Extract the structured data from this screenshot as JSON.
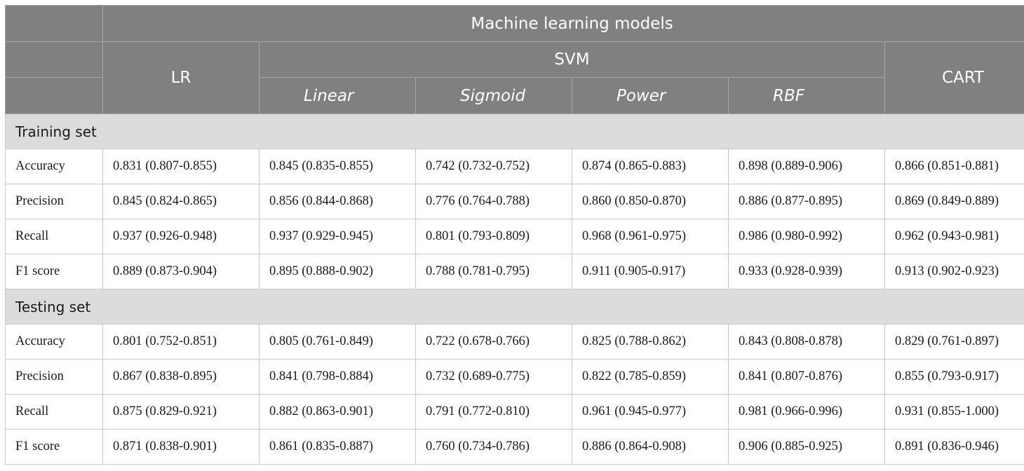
{
  "table": {
    "top_header": "Machine learning models",
    "models": {
      "lr": "LR",
      "svm": "SVM",
      "cart": "CART"
    },
    "kernels": [
      "Linear",
      "Sigmoid",
      "Power",
      "RBF"
    ],
    "sections": [
      {
        "title": "Training set",
        "rows": [
          {
            "metric": "Accuracy",
            "values": [
              "0.831 (0.807-0.855)",
              "0.845 (0.835-0.855)",
              "0.742 (0.732-0.752)",
              "0.874 (0.865-0.883)",
              "0.898 (0.889-0.906)",
              "0.866 (0.851-0.881)"
            ]
          },
          {
            "metric": "Precision",
            "values": [
              "0.845 (0.824-0.865)",
              "0.856 (0.844-0.868)",
              "0.776 (0.764-0.788)",
              "0.860 (0.850-0.870)",
              "0.886 (0.877-0.895)",
              "0.869 (0.849-0.889)"
            ]
          },
          {
            "metric": "Recall",
            "values": [
              "0.937 (0.926-0.948)",
              "0.937 (0.929-0.945)",
              "0.801 (0.793-0.809)",
              "0.968 (0.961-0.975)",
              "0.986 (0.980-0.992)",
              "0.962 (0.943-0.981)"
            ]
          },
          {
            "metric": "F1 score",
            "values": [
              "0.889 (0.873-0.904)",
              "0.895 (0.888-0.902)",
              "0.788 (0.781-0.795)",
              "0.911 (0.905-0.917)",
              "0.933 (0.928-0.939)",
              "0.913 (0.902-0.923)"
            ]
          }
        ]
      },
      {
        "title": "Testing set",
        "rows": [
          {
            "metric": "Accuracy",
            "values": [
              "0.801 (0.752-0.851)",
              "0.805 (0.761-0.849)",
              "0.722 (0.678-0.766)",
              "0.825 (0.788-0.862)",
              "0.843 (0.808-0.878)",
              "0.829 (0.761-0.897)"
            ]
          },
          {
            "metric": "Precision",
            "values": [
              "0.867 (0.838-0.895)",
              "0.841 (0.798-0.884)",
              "0.732 (0.689-0.775)",
              "0.822 (0.785-0.859)",
              "0.841 (0.807-0.876)",
              "0.855 (0.793-0.917)"
            ]
          },
          {
            "metric": "Recall",
            "values": [
              "0.875 (0.829-0.921)",
              "0.882 (0.863-0.901)",
              "0.791 (0.772-0.810)",
              "0.961 (0.945-0.977)",
              "0.981 (0.966-0.996)",
              "0.931 (0.855-1.000)"
            ]
          },
          {
            "metric": "F1 score",
            "values": [
              "0.871 (0.838-0.901)",
              "0.861 (0.835-0.887)",
              "0.760 (0.734-0.786)",
              "0.886 (0.864-0.908)",
              "0.906 (0.885-0.925)",
              "0.891 (0.836-0.946)"
            ]
          }
        ]
      }
    ]
  }
}
